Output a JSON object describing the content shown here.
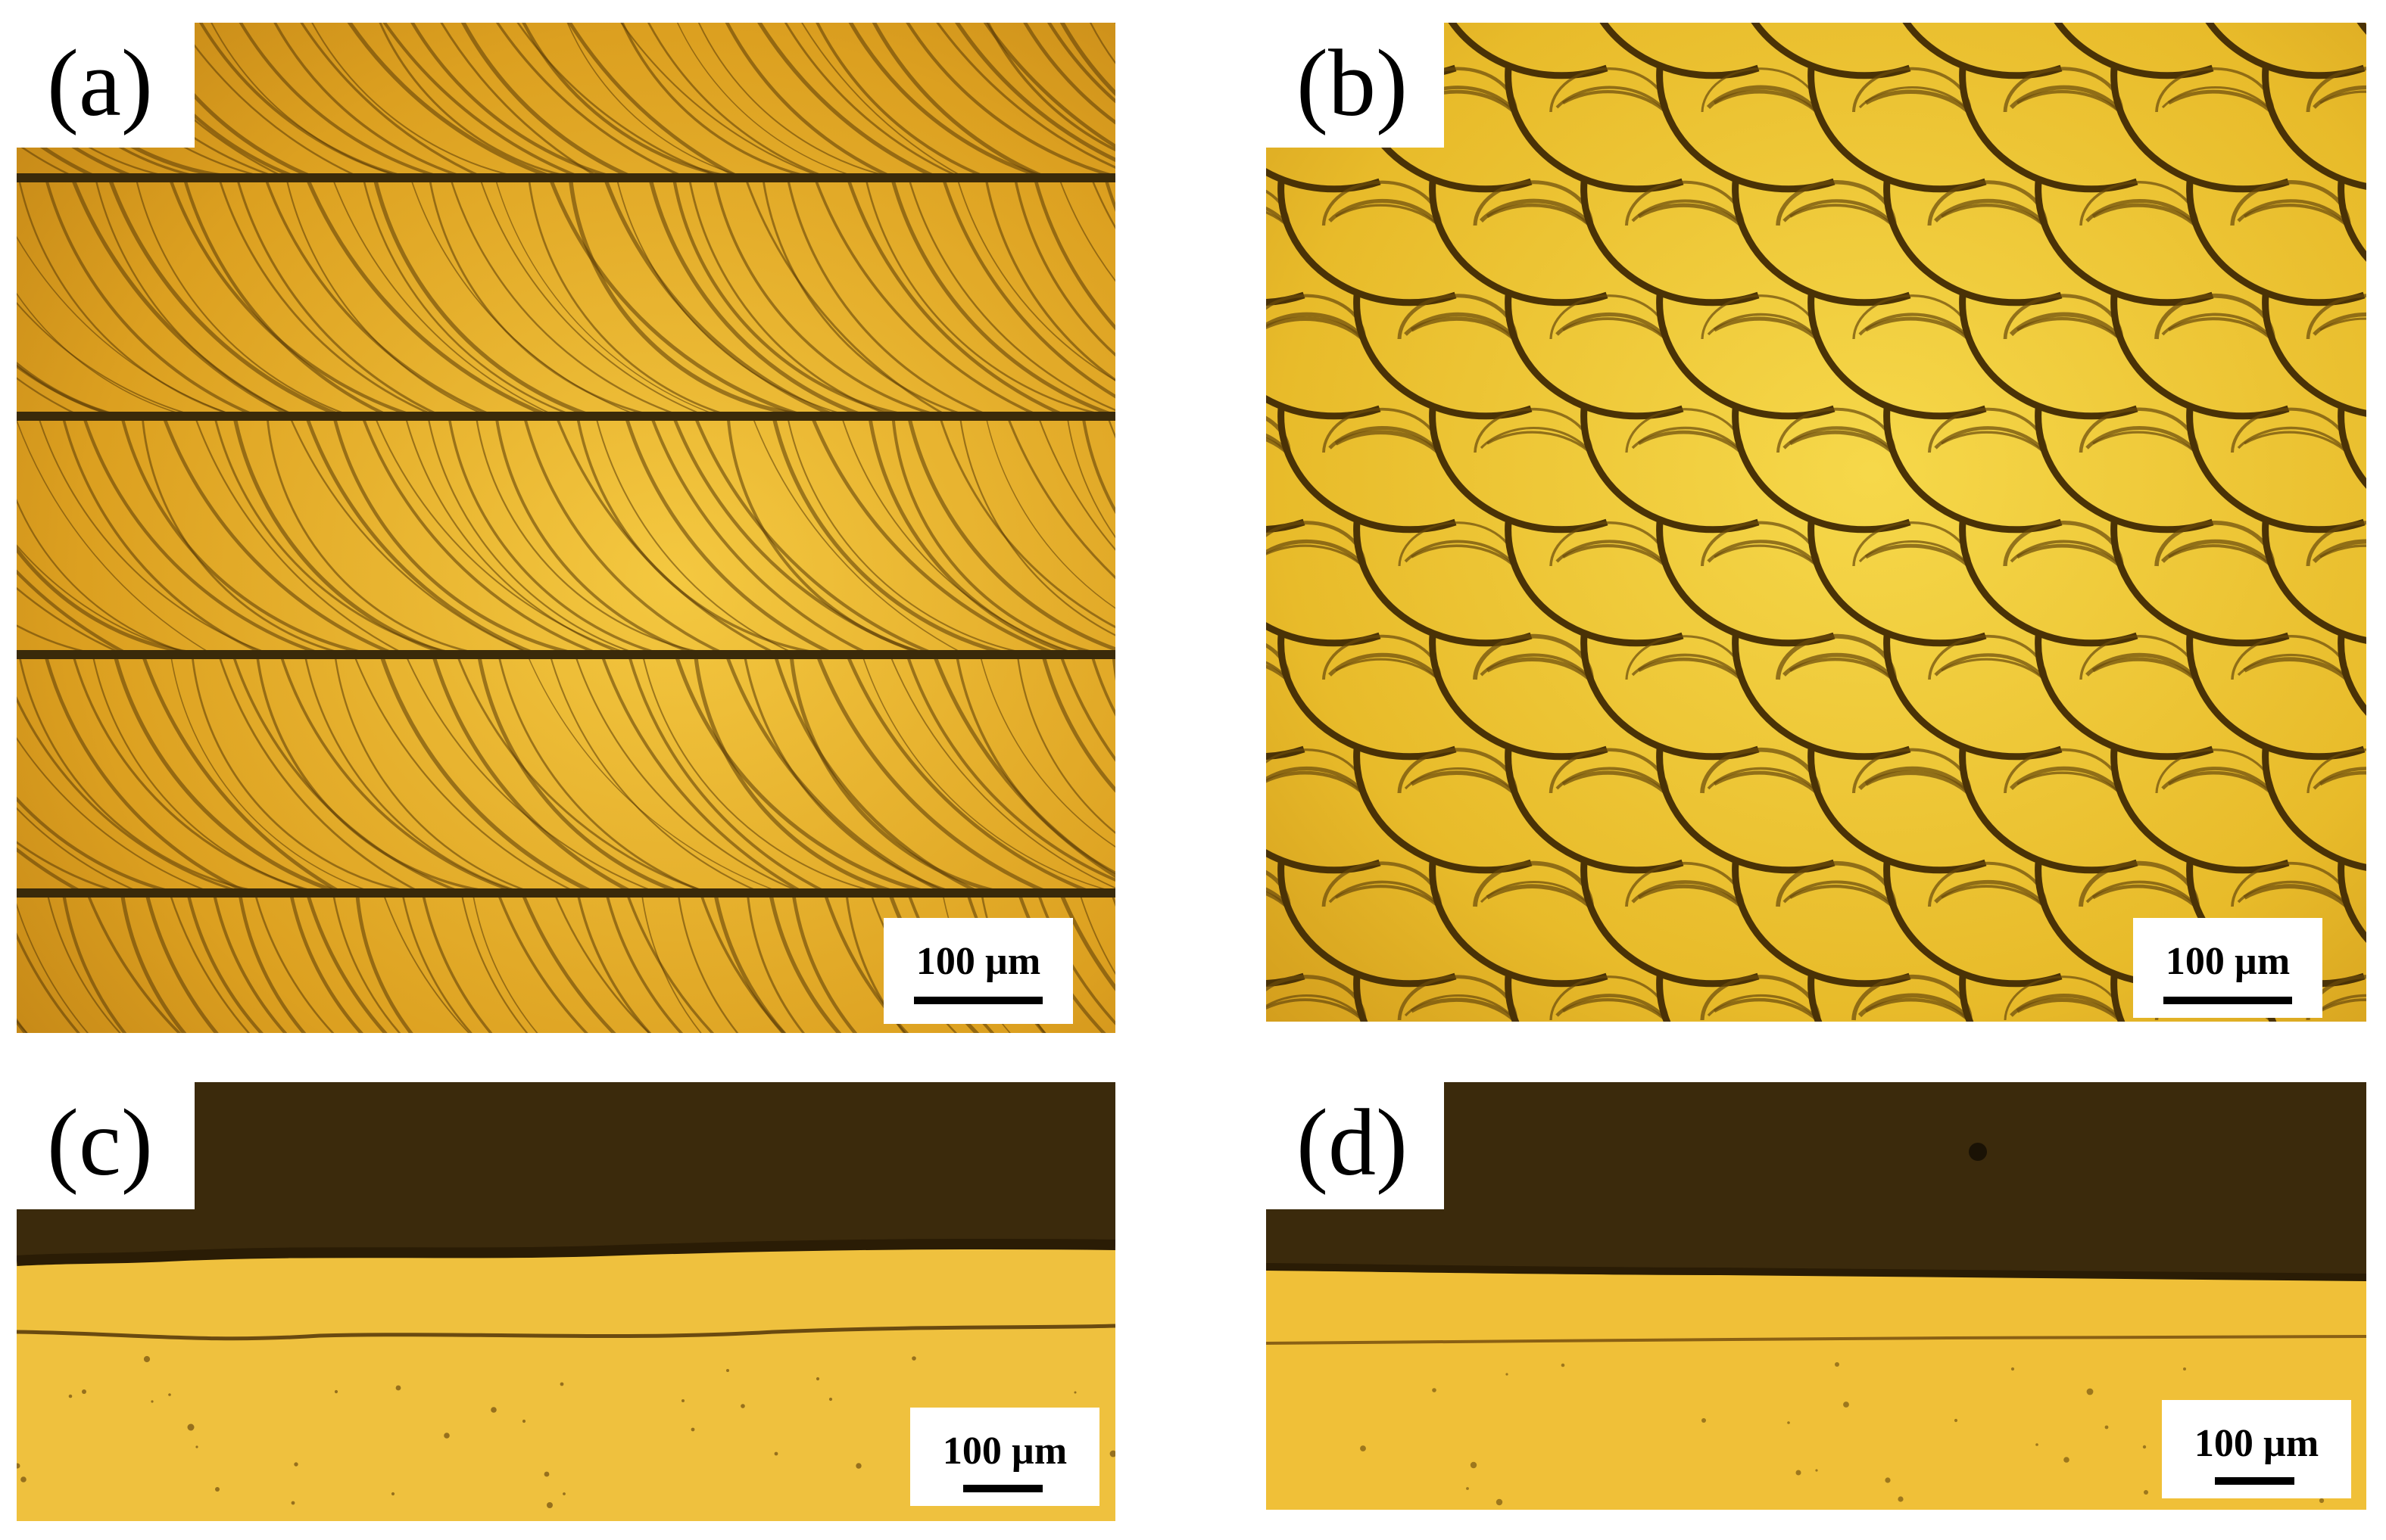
{
  "panels": [
    {
      "id": "a",
      "label": "(a)",
      "scale_label": "100 µm"
    },
    {
      "id": "b",
      "label": "(b)",
      "scale_label": "100 µm"
    },
    {
      "id": "c",
      "label": "(c)",
      "scale_label": "100 µm"
    },
    {
      "id": "d",
      "label": "(d)",
      "scale_label": "100 µm"
    }
  ],
  "colors": {
    "gold_bright": "#f2c23a",
    "gold_mid": "#d89a18",
    "gold_dark": "#8a5a0a",
    "track_dark": "#3a2a0a",
    "background_dark": "#3b2a0c",
    "cross_section": "#efc13e"
  }
}
